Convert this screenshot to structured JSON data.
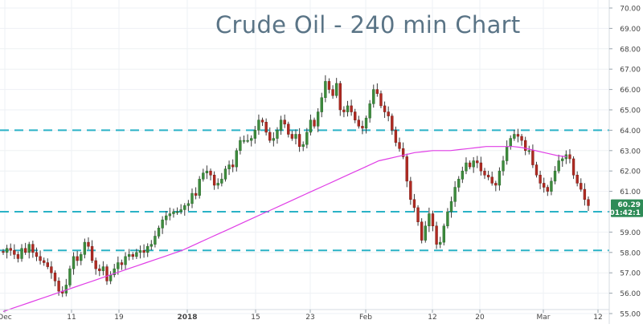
{
  "chart_data": {
    "type": "candlestick",
    "title": "Crude Oil - 240 min Chart",
    "ylim": [
      55.0,
      70.0
    ],
    "y_ticks": [
      "55.00",
      "56.00",
      "57.00",
      "58.00",
      "59.00",
      "60.00",
      "61.00",
      "62.00",
      "63.00",
      "64.00",
      "65.00",
      "66.00",
      "67.00",
      "68.00",
      "69.00",
      "70.00"
    ],
    "x_ticks": [
      {
        "label": "Dec",
        "bold": false
      },
      {
        "label": "11",
        "bold": false
      },
      {
        "label": "19",
        "bold": false
      },
      {
        "label": "2018",
        "bold": true
      },
      {
        "label": "15",
        "bold": false
      },
      {
        "label": "23",
        "bold": false
      },
      {
        "label": "Feb",
        "bold": false
      },
      {
        "label": "12",
        "bold": false
      },
      {
        "label": "20",
        "bold": false
      },
      {
        "label": "Mar",
        "bold": false
      },
      {
        "label": "12",
        "bold": false
      }
    ],
    "horizontal_levels": [
      64.0,
      60.0,
      58.1
    ],
    "last_price_label": "60.29",
    "time_to_close_label": "01:42:1",
    "grid": true,
    "colors": {
      "up": "#3d8b3d",
      "down": "#b02a22",
      "wick": "#3a3a3a",
      "moving_average": "#e03ee6",
      "level_line": "#2ab2c6",
      "price_tag": "#2e8b57",
      "grid": "#eef1f4",
      "axis_text": "#444444",
      "title": "#5a7486"
    },
    "series": [
      {
        "kind": "close",
        "values": [
          58.0,
          58.2,
          58.1,
          57.9,
          57.7,
          58.2,
          58.0,
          58.4,
          58.0,
          57.8,
          57.6,
          57.5,
          57.3,
          57.0,
          56.6,
          56.1,
          56.0,
          56.4,
          57.2,
          57.8,
          57.6,
          57.9,
          58.5,
          58.3,
          57.6,
          57.2,
          57.1,
          57.3,
          56.6,
          56.9,
          57.2,
          57.5,
          57.4,
          57.8,
          57.9,
          57.8,
          58.0,
          58.1,
          58.0,
          58.3,
          58.4,
          58.8,
          59.2,
          59.6,
          59.8,
          59.9,
          60.0,
          60.0,
          60.1,
          60.3,
          60.4,
          60.9,
          60.8,
          61.6,
          61.9,
          62.0,
          61.8,
          61.3,
          61.4,
          61.6,
          62.1,
          62.3,
          62.2,
          63.0,
          63.5,
          63.5,
          63.5,
          63.6,
          64.0,
          64.5,
          64.4,
          63.9,
          63.5,
          63.6,
          64.0,
          64.5,
          64.3,
          63.8,
          63.6,
          63.8,
          63.2,
          63.3,
          63.9,
          64.5,
          64.2,
          64.9,
          65.6,
          66.4,
          66.0,
          65.7,
          66.3,
          65.0,
          64.9,
          65.2,
          64.9,
          64.5,
          64.2,
          64.1,
          64.6,
          65.3,
          66.0,
          65.8,
          65.2,
          64.9,
          64.7,
          64.0,
          63.4,
          63.1,
          62.7,
          61.5,
          60.6,
          60.2,
          59.5,
          58.6,
          59.3,
          59.9,
          59.3,
          58.4,
          58.5,
          59.3,
          60.0,
          60.5,
          61.2,
          61.6,
          62.0,
          62.4,
          62.2,
          62.5,
          62.4,
          62.0,
          61.8,
          61.7,
          61.4,
          61.3,
          62.0,
          62.5,
          63.2,
          63.6,
          63.8,
          63.7,
          63.5,
          63.0,
          63.0,
          62.3,
          61.8,
          61.4,
          61.2,
          61.0,
          61.5,
          62.0,
          62.5,
          62.6,
          62.8,
          62.6,
          61.8,
          61.4,
          61.1,
          60.6,
          60.3
        ],
        "name": ""
      },
      {
        "kind": "moving_average",
        "values": [
          55.1,
          55.25,
          55.4,
          55.55,
          55.7,
          55.85,
          56.0,
          56.15,
          56.3,
          56.45,
          56.6,
          56.75,
          56.9,
          57.05,
          57.2,
          57.35,
          57.5,
          57.65,
          57.8,
          57.95,
          58.1,
          58.3,
          58.5,
          58.7,
          58.9,
          59.1,
          59.3,
          59.5,
          59.7,
          59.9,
          60.1,
          60.3,
          60.5,
          60.7,
          60.9,
          61.1,
          61.3,
          61.5,
          61.7,
          61.9,
          62.1,
          62.3,
          62.5,
          62.6,
          62.7,
          62.8,
          62.9,
          62.95,
          63.0,
          63.0,
          63.0,
          63.05,
          63.1,
          63.15,
          63.2,
          63.2,
          63.2,
          63.2,
          63.15,
          63.05,
          62.95,
          62.85,
          62.75,
          62.7
        ],
        "name": ""
      }
    ]
  }
}
